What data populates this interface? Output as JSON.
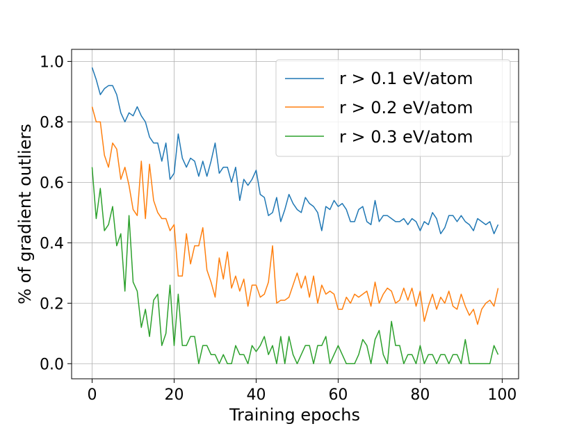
{
  "chart_data": {
    "type": "line",
    "title": "",
    "xlabel": "Training epochs",
    "ylabel": "% of gradient outliers",
    "xlim": [
      -5,
      104
    ],
    "ylim": [
      -0.05,
      1.04
    ],
    "xticks": [
      0,
      20,
      40,
      60,
      80,
      100
    ],
    "yticks": [
      0.0,
      0.2,
      0.4,
      0.6,
      0.8,
      1.0
    ],
    "xtick_labels": [
      "0",
      "20",
      "40",
      "60",
      "80",
      "100"
    ],
    "ytick_labels": [
      "0.0",
      "0.2",
      "0.4",
      "0.6",
      "0.8",
      "1.0"
    ],
    "grid": true,
    "legend_position": "top-right",
    "series": [
      {
        "name": "r > 0.1 eV/atom",
        "color": "#1f77b4",
        "values": [
          0.98,
          0.94,
          0.89,
          0.91,
          0.92,
          0.92,
          0.89,
          0.83,
          0.8,
          0.83,
          0.82,
          0.85,
          0.82,
          0.8,
          0.75,
          0.73,
          0.73,
          0.67,
          0.73,
          0.61,
          0.63,
          0.76,
          0.68,
          0.65,
          0.68,
          0.67,
          0.62,
          0.67,
          0.62,
          0.67,
          0.73,
          0.63,
          0.65,
          0.65,
          0.6,
          0.65,
          0.54,
          0.61,
          0.59,
          0.61,
          0.64,
          0.56,
          0.55,
          0.49,
          0.5,
          0.55,
          0.47,
          0.51,
          0.56,
          0.53,
          0.51,
          0.5,
          0.55,
          0.53,
          0.52,
          0.5,
          0.44,
          0.52,
          0.51,
          0.54,
          0.52,
          0.53,
          0.51,
          0.47,
          0.47,
          0.51,
          0.52,
          0.47,
          0.46,
          0.54,
          0.47,
          0.49,
          0.49,
          0.48,
          0.47,
          0.47,
          0.48,
          0.46,
          0.48,
          0.47,
          0.44,
          0.47,
          0.46,
          0.5,
          0.48,
          0.43,
          0.45,
          0.49,
          0.49,
          0.47,
          0.49,
          0.47,
          0.46,
          0.44,
          0.48,
          0.47,
          0.46,
          0.47,
          0.43,
          0.46
        ]
      },
      {
        "name": "r > 0.2 eV/atom",
        "color": "#ff7f0e",
        "values": [
          0.85,
          0.8,
          0.8,
          0.69,
          0.65,
          0.73,
          0.71,
          0.61,
          0.65,
          0.59,
          0.51,
          0.49,
          0.67,
          0.48,
          0.66,
          0.54,
          0.5,
          0.48,
          0.48,
          0.44,
          0.46,
          0.29,
          0.29,
          0.43,
          0.33,
          0.39,
          0.39,
          0.45,
          0.31,
          0.27,
          0.22,
          0.35,
          0.28,
          0.37,
          0.25,
          0.29,
          0.24,
          0.28,
          0.19,
          0.26,
          0.26,
          0.22,
          0.23,
          0.27,
          0.39,
          0.2,
          0.21,
          0.21,
          0.22,
          0.26,
          0.3,
          0.25,
          0.29,
          0.22,
          0.29,
          0.2,
          0.26,
          0.23,
          0.24,
          0.23,
          0.18,
          0.18,
          0.22,
          0.2,
          0.23,
          0.22,
          0.23,
          0.24,
          0.19,
          0.27,
          0.2,
          0.23,
          0.25,
          0.24,
          0.2,
          0.21,
          0.25,
          0.21,
          0.25,
          0.19,
          0.24,
          0.14,
          0.19,
          0.23,
          0.18,
          0.22,
          0.2,
          0.24,
          0.19,
          0.18,
          0.23,
          0.19,
          0.16,
          0.18,
          0.13,
          0.18,
          0.2,
          0.21,
          0.19,
          0.25
        ]
      },
      {
        "name": "r > 0.3 eV/atom",
        "color": "#2ca02c",
        "values": [
          0.65,
          0.48,
          0.58,
          0.44,
          0.46,
          0.52,
          0.39,
          0.43,
          0.24,
          0.49,
          0.27,
          0.24,
          0.12,
          0.18,
          0.09,
          0.21,
          0.23,
          0.06,
          0.1,
          0.26,
          0.06,
          0.23,
          0.06,
          0.06,
          0.09,
          0.09,
          0.0,
          0.06,
          0.06,
          0.03,
          0.03,
          0.0,
          0.03,
          0.0,
          0.0,
          0.06,
          0.03,
          0.03,
          0.0,
          0.06,
          0.04,
          0.06,
          0.09,
          0.03,
          0.06,
          0.0,
          0.09,
          0.0,
          0.09,
          0.03,
          0.0,
          0.03,
          0.06,
          0.06,
          0.0,
          0.06,
          0.06,
          0.09,
          0.0,
          0.03,
          0.06,
          0.03,
          0.0,
          0.0,
          0.0,
          0.03,
          0.08,
          0.06,
          0.0,
          0.08,
          0.11,
          0.03,
          0.0,
          0.14,
          0.06,
          0.06,
          0.0,
          0.03,
          0.03,
          0.0,
          0.06,
          0.0,
          0.03,
          0.03,
          0.0,
          0.03,
          0.03,
          0.0,
          0.03,
          0.03,
          0.0,
          0.08,
          0.0,
          0.0,
          0.0,
          0.0,
          0.0,
          0.0,
          0.06,
          0.03
        ]
      }
    ]
  }
}
